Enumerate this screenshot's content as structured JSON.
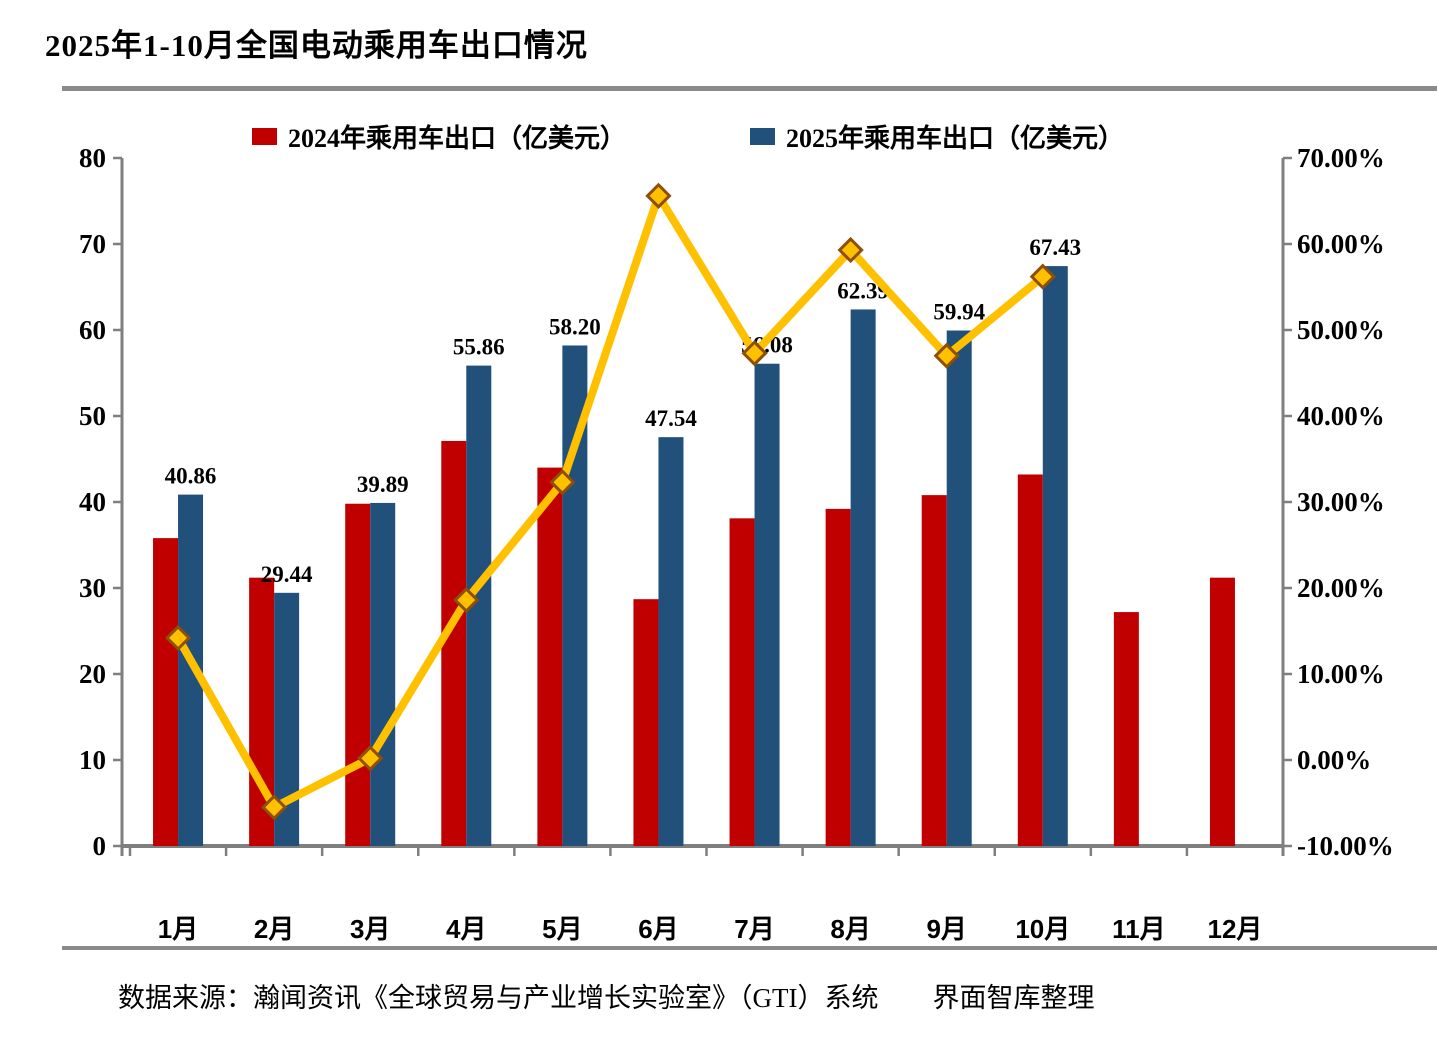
{
  "page": {
    "title": "2025年1-10月全国电动乘用车出口情况",
    "source_note": "数据来源：瀚闻资讯《全球贸易与产业增长实验室》（GTI）系统　　界面智库整理"
  },
  "colors": {
    "bar_2024": "#c00000",
    "bar_2025": "#21507b",
    "growth_line": "#ffc000",
    "marker_border": "#8f4f06",
    "axis": "#7f7f7f",
    "divider": "#8a8a8a"
  },
  "legend": {
    "items": [
      {
        "label": "2024年乘用车出口（亿美元）",
        "color": "#c00000"
      },
      {
        "label": "2025年乘用车出口（亿美元）",
        "color": "#21507b"
      }
    ]
  },
  "chart_data": {
    "type": "combo",
    "title": "2025年1-10月全国电动乘用车出口情况",
    "categories": [
      "1月",
      "2月",
      "3月",
      "4月",
      "5月",
      "6月",
      "7月",
      "8月",
      "9月",
      "10月",
      "11月",
      "12月"
    ],
    "series": [
      {
        "type": "bar",
        "name": "2024年乘用车出口（亿美元）",
        "color": "#c00000",
        "values": [
          35.8,
          31.2,
          39.8,
          47.1,
          44.0,
          28.7,
          38.1,
          39.2,
          40.8,
          43.2,
          27.2,
          31.2
        ]
      },
      {
        "type": "bar",
        "name": "2025年乘用车出口（亿美元）",
        "color": "#21507b",
        "values": [
          40.86,
          29.44,
          39.89,
          55.86,
          58.2,
          47.54,
          56.08,
          62.39,
          59.94,
          67.43,
          null,
          null
        ],
        "data_labels": [
          "40.86",
          "29.44",
          "39.89",
          "55.86",
          "58.20",
          "47.54",
          "56.08",
          "62.39",
          "59.94",
          "67.43",
          null,
          null
        ]
      },
      {
        "type": "line",
        "axis": "right",
        "color": "#ffc000",
        "marker": "diamond",
        "marker_border": "#8f4f06",
        "values_pct": [
          14.2,
          -5.5,
          0.2,
          18.6,
          32.3,
          65.6,
          47.3,
          59.3,
          47.0,
          56.2,
          null,
          null
        ]
      }
    ],
    "left_axis": {
      "min": 0,
      "max": 80,
      "tick_step": 10,
      "tick_labels": [
        "0",
        "10",
        "20",
        "30",
        "40",
        "50",
        "60",
        "70",
        "80"
      ]
    },
    "right_axis": {
      "min": -10,
      "max": 70,
      "tick_step": 10,
      "tick_labels": [
        "-10.00%",
        "0.00%",
        "10.00%",
        "20.00%",
        "30.00%",
        "40.00%",
        "50.00%",
        "60.00%",
        "70.00%"
      ]
    },
    "grid": false,
    "legend_position": "top"
  }
}
